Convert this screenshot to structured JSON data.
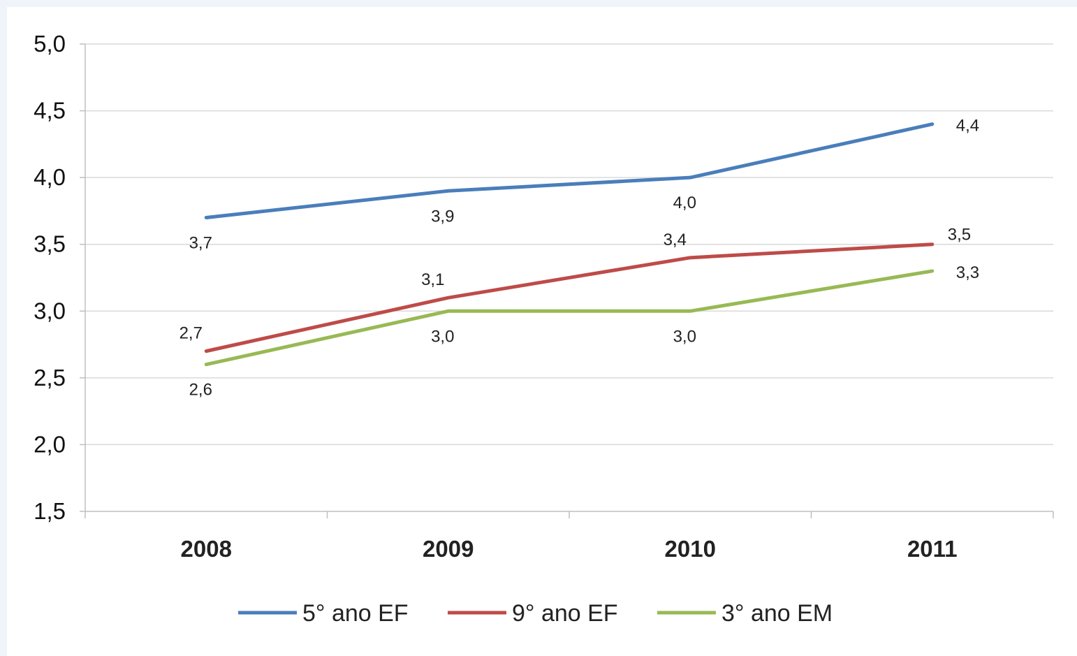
{
  "chart_data": {
    "type": "line",
    "title": "",
    "xlabel": "",
    "ylabel": "",
    "categories": [
      "2008",
      "2009",
      "2010",
      "2011"
    ],
    "ylim": [
      1.5,
      5.0
    ],
    "yticks": [
      "1,5",
      "2,0",
      "2,5",
      "3,0",
      "3,5",
      "4,0",
      "4,5",
      "5,0"
    ],
    "grid": true,
    "legend_position": "bottom",
    "series": [
      {
        "name": "5° ano EF",
        "color": "#4a7ebb",
        "values": [
          3.7,
          3.9,
          4.0,
          4.4
        ],
        "labels": [
          "3,7",
          "3,9",
          "4,0",
          "4,4"
        ],
        "label_positions": [
          "below",
          "below",
          "below",
          "right"
        ]
      },
      {
        "name": "9° ano EF",
        "color": "#be4b48",
        "values": [
          2.7,
          3.1,
          3.4,
          3.5
        ],
        "labels": [
          "2,7",
          "3,1",
          "3,4",
          "3,5"
        ],
        "label_positions": [
          "above",
          "above",
          "above",
          "above-right"
        ]
      },
      {
        "name": "3° ano EM",
        "color": "#98b954",
        "values": [
          2.6,
          3.0,
          3.0,
          3.3
        ],
        "labels": [
          "2,6",
          "3,0",
          "3,0",
          "3,3"
        ],
        "label_positions": [
          "below",
          "below",
          "below",
          "right"
        ]
      }
    ]
  }
}
